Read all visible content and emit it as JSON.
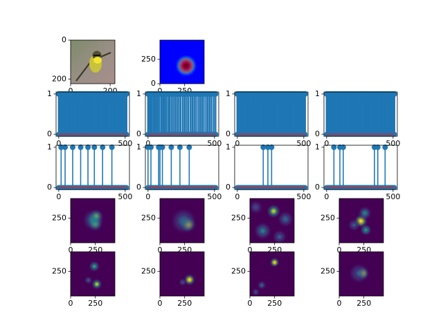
{
  "chart_data": {
    "type": "figure-grid",
    "colors": {
      "stem_line": "#1f77b4",
      "stem_marker": "#1f77b4",
      "baseline": "#d62728",
      "jet_peak": "#e01010",
      "viridis_low": "#440154",
      "viridis_high": "#fde725"
    },
    "image_panels": [
      {
        "kind": "photo",
        "subject": "yellow-throated bird perched on branch",
        "yticks": [
          {
            "v": 0,
            "label": "0"
          },
          {
            "v": 200,
            "label": "200"
          }
        ],
        "xticks": [
          {
            "v": 0,
            "label": "0"
          },
          {
            "v": 200,
            "label": "200"
          }
        ],
        "xlim": [
          0,
          224
        ],
        "ylim": [
          224,
          0
        ]
      },
      {
        "kind": "heatmap-jet",
        "yticks": [
          {
            "v": 0,
            "label": "0"
          },
          {
            "v": 250,
            "label": "250"
          }
        ],
        "xticks": [
          {
            "v": 0,
            "label": "0"
          },
          {
            "v": 250,
            "label": "250"
          }
        ],
        "xlim": [
          0,
          448
        ],
        "ylim": [
          448,
          0
        ],
        "blobs": [
          {
            "x": 265,
            "y": 185,
            "r": 110,
            "w": 1.0
          }
        ]
      }
    ],
    "stem_rows": [
      {
        "ylim": [
          -0.05,
          1.05
        ],
        "xlim": [
          -20,
          532
        ],
        "yticks": [
          {
            "v": 0,
            "label": "0"
          },
          {
            "v": 1,
            "label": "1"
          }
        ],
        "xticks": [
          {
            "v": 0,
            "label": "0"
          },
          {
            "v": 500,
            "label": "500"
          }
        ],
        "panels": [
          {
            "ones": [
              0,
              6,
              12,
              20,
              28,
              35,
              44,
              52,
              60,
              68,
              75,
              84,
              92,
              100,
              108,
              116,
              124,
              132,
              140,
              150,
              158,
              166,
              174,
              182,
              190,
              198,
              206,
              214,
              222,
              230,
              238,
              246,
              254,
              262,
              270,
              278,
              286,
              294,
              302,
              310,
              318,
              326,
              334,
              342,
              350,
              358,
              366,
              374,
              382,
              390,
              398,
              406,
              414,
              422,
              430,
              438,
              446,
              454,
              462,
              470,
              478,
              486,
              494,
              502,
              510
            ]
          },
          {
            "ones": [
              0,
              8,
              18,
              30,
              42,
              50,
              62,
              74,
              86,
              100,
              112,
              124,
              136,
              150,
              162,
              176,
              190,
              204,
              218,
              232,
              246,
              262,
              276,
              290,
              304,
              320,
              334,
              348,
              362,
              378,
              392,
              406,
              420,
              436,
              450,
              464,
              478,
              494,
              508
            ]
          },
          {
            "ones": [
              0,
              5,
              10,
              16,
              22,
              28,
              34,
              40,
              46,
              52,
              58,
              64,
              70,
              76,
              82,
              88,
              94,
              100,
              106,
              112,
              118,
              124,
              130,
              136,
              142,
              148,
              154,
              160,
              166,
              172,
              178,
              184,
              190,
              196,
              202,
              208,
              214,
              220,
              226,
              232,
              238,
              244,
              250,
              256,
              262,
              268,
              274,
              280,
              286,
              292,
              298,
              304,
              310,
              316,
              322,
              328,
              334,
              340,
              346,
              352,
              358,
              364,
              370,
              376,
              382,
              388,
              394,
              400,
              406,
              412,
              418,
              424,
              432,
              440,
              448,
              456,
              462,
              470,
              478,
              486,
              494,
              502,
              510
            ]
          },
          {
            "ones": [
              0,
              8,
              16,
              24,
              34,
              44,
              52,
              60,
              70,
              80,
              90,
              100,
              110,
              120,
              130,
              140,
              150,
              160,
              170,
              180,
              190,
              200,
              210,
              220,
              230,
              240,
              250,
              260,
              270,
              280,
              290,
              300,
              310,
              320,
              330,
              340,
              350,
              360,
              370,
              380,
              390,
              400,
              410,
              420,
              430,
              440,
              450,
              460,
              470,
              480,
              490,
              500,
              510
            ]
          }
        ]
      },
      {
        "ylim": [
          -0.05,
          1.05
        ],
        "xlim": [
          -20,
          532
        ],
        "yticks": [
          {
            "v": 0,
            "label": "0"
          },
          {
            "v": 1,
            "label": "1"
          }
        ],
        "xticks": [
          {
            "v": 0,
            "label": "0"
          },
          {
            "v": 500,
            "label": "500"
          }
        ],
        "panels": [
          {
            "ones": [
              18,
              48,
              105,
              165,
              220,
              268,
              330,
              400
            ]
          },
          {
            "ones": [
              0,
              22,
              80,
              90,
              108,
              175,
              240,
              310
            ]
          },
          {
            "ones": [
              195,
              230,
              258
            ]
          },
          {
            "ones": [
              55,
              100,
              125,
              360,
              385,
              440
            ]
          }
        ]
      }
    ],
    "heatmap_rows": [
      {
        "xlim": [
          0,
          448
        ],
        "ylim": [
          448,
          0
        ],
        "yticks": [
          {
            "v": 250,
            "label": "250"
          }
        ],
        "xticks": [
          {
            "v": 0,
            "label": "0"
          },
          {
            "v": 250,
            "label": "250"
          }
        ],
        "panels": [
          {
            "blobs": [
              {
                "x": 250,
                "y": 190,
                "r": 70,
                "w": 0.8
              },
              {
                "x": 260,
                "y": 270,
                "r": 70,
                "w": 0.9
              },
              {
                "x": 230,
                "y": 230,
                "r": 110,
                "w": 0.5
              }
            ]
          },
          {
            "blobs": [
              {
                "x": 285,
                "y": 185,
                "r": 80,
                "w": 1.0
              },
              {
                "x": 240,
                "y": 220,
                "r": 130,
                "w": 0.4
              }
            ]
          },
          {
            "blobs": [
              {
                "x": 240,
                "y": 320,
                "r": 70,
                "w": 0.9
              },
              {
                "x": 130,
                "y": 120,
                "r": 90,
                "w": 0.45
              },
              {
                "x": 360,
                "y": 240,
                "r": 80,
                "w": 0.4
              },
              {
                "x": 60,
                "y": 360,
                "r": 70,
                "w": 0.3
              },
              {
                "x": 300,
                "y": 60,
                "r": 70,
                "w": 0.35
              }
            ]
          },
          {
            "blobs": [
              {
                "x": 220,
                "y": 220,
                "r": 70,
                "w": 1.0
              },
              {
                "x": 270,
                "y": 130,
                "r": 60,
                "w": 0.6
              },
              {
                "x": 260,
                "y": 300,
                "r": 70,
                "w": 0.55
              },
              {
                "x": 150,
                "y": 180,
                "r": 60,
                "w": 0.35
              }
            ]
          }
        ]
      },
      {
        "xlim": [
          0,
          448
        ],
        "ylim": [
          448,
          0
        ],
        "yticks": [
          {
            "v": 250,
            "label": "250"
          }
        ],
        "xticks": [
          {
            "v": 0,
            "label": "0"
          },
          {
            "v": 250,
            "label": "250"
          }
        ],
        "panels": [
          {
            "blobs": [
              {
                "x": 265,
                "y": 120,
                "r": 55,
                "w": 0.9
              },
              {
                "x": 240,
                "y": 300,
                "r": 55,
                "w": 0.7
              },
              {
                "x": 180,
                "y": 160,
                "r": 40,
                "w": 0.35
              }
            ]
          },
          {
            "blobs": [
              {
                "x": 300,
                "y": 165,
                "r": 60,
                "w": 1.0
              },
              {
                "x": 230,
                "y": 140,
                "r": 40,
                "w": 0.3
              }
            ]
          },
          {
            "blobs": [
              {
                "x": 250,
                "y": 340,
                "r": 50,
                "w": 1.0
              },
              {
                "x": 120,
                "y": 110,
                "r": 45,
                "w": 0.4
              },
              {
                "x": 60,
                "y": 40,
                "r": 40,
                "w": 0.3
              }
            ]
          },
          {
            "blobs": [
              {
                "x": 240,
                "y": 230,
                "r": 65,
                "w": 1.0
              },
              {
                "x": 200,
                "y": 230,
                "r": 100,
                "w": 0.35
              }
            ]
          }
        ]
      }
    ]
  }
}
